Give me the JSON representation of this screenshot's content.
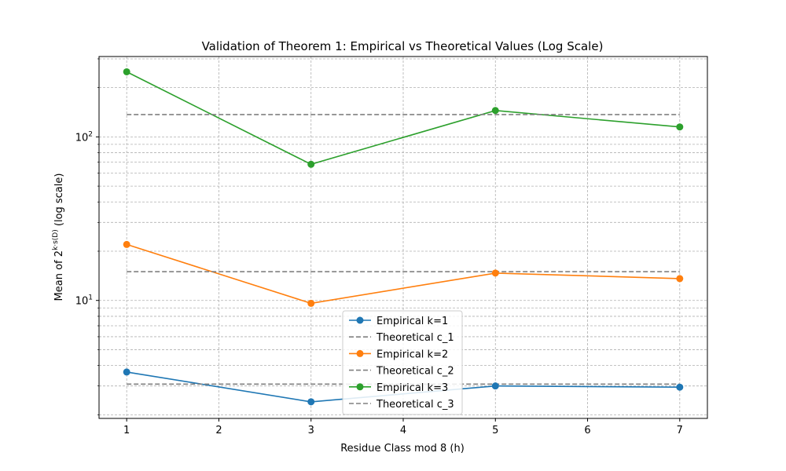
{
  "chart_data": {
    "type": "line",
    "title": "Validation of Theorem 1: Empirical vs Theoretical Values (Log Scale)",
    "xlabel": "Residue Class mod 8 (h)",
    "ylabel_prefix": "Mean of 2",
    "ylabel_superscript": "k·s(D)",
    "ylabel_suffix": " (log scale)",
    "yscale": "log",
    "xlim": [
      0.7,
      7.3
    ],
    "ylim": [
      1.9,
      310
    ],
    "x_ticks": [
      1,
      2,
      3,
      4,
      5,
      6,
      7
    ],
    "y_major_ticks": [
      {
        "value": 10,
        "base": "10",
        "exp": "1"
      },
      {
        "value": 100,
        "base": "10",
        "exp": "2"
      }
    ],
    "grid": true,
    "legend_position": "lower center",
    "x": [
      1,
      3,
      5,
      7
    ],
    "series": [
      {
        "name": "Empirical k=1",
        "kind": "empirical",
        "color": "#1f77b4",
        "values": [
          3.65,
          2.4,
          3.0,
          2.95
        ]
      },
      {
        "name": "Theoretical c_1",
        "kind": "theoretical",
        "color": "#808080",
        "value": 3.08,
        "x_range": [
          1,
          7
        ]
      },
      {
        "name": "Empirical k=2",
        "kind": "empirical",
        "color": "#ff7f0e",
        "values": [
          22,
          9.6,
          14.7,
          13.6
        ]
      },
      {
        "name": "Theoretical c_2",
        "kind": "theoretical",
        "color": "#808080",
        "value": 15,
        "x_range": [
          1,
          7
        ]
      },
      {
        "name": "Empirical k=3",
        "kind": "empirical",
        "color": "#2ca02c",
        "values": [
          250,
          68,
          145,
          115
        ]
      },
      {
        "name": "Theoretical c_3",
        "kind": "theoretical",
        "color": "#808080",
        "value": 137,
        "x_range": [
          1,
          7
        ]
      }
    ]
  }
}
